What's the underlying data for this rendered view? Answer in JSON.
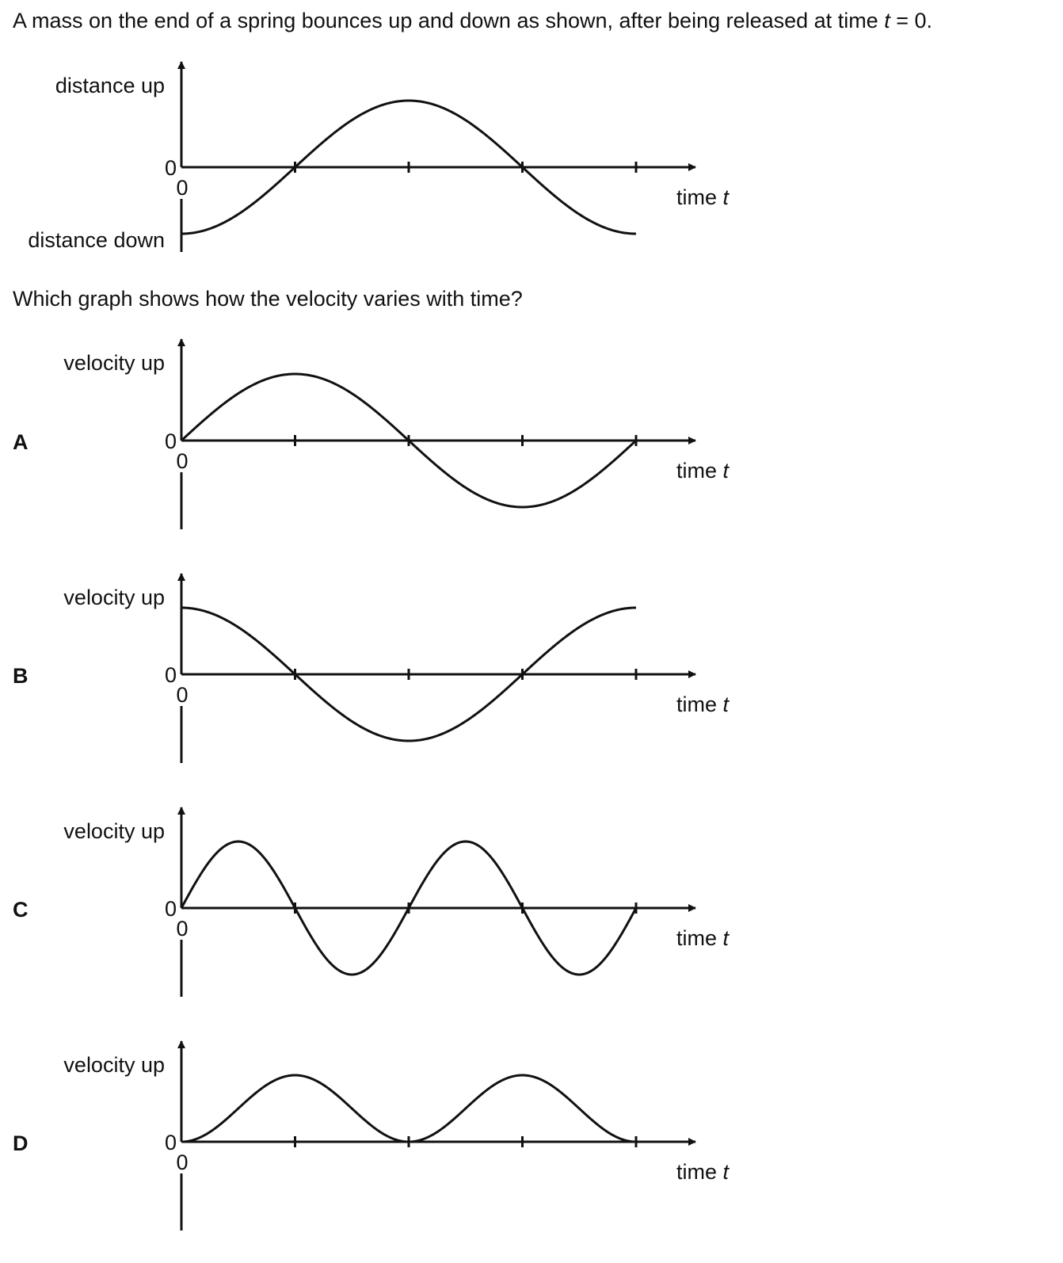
{
  "question": {
    "text_before": "A mass on the end of a spring bounces up and down as shown, after being released at time ",
    "t_symbol": "t",
    "text_after": " = 0.",
    "prompt": "Which graph shows how the velocity varies with time?"
  },
  "chart_data": [
    {
      "id": "distance",
      "type": "line",
      "option": "",
      "y_label_up": "distance up",
      "y_label_down": "distance down",
      "y_zero_label": "0",
      "x_zero_label": "0",
      "x_label": "time",
      "x_label_symbol": "t",
      "x_ticks": [
        1,
        2,
        3,
        4
      ],
      "xlim": [
        0,
        4
      ],
      "ylim": [
        -1,
        1
      ],
      "curve": "-cos(pi*x/2)"
    },
    {
      "id": "A",
      "type": "line",
      "option": "A",
      "y_label_up": "velocity up",
      "y_label_down": "",
      "y_zero_label": "0",
      "x_zero_label": "0",
      "x_label": "time",
      "x_label_symbol": "t",
      "x_ticks": [
        1,
        2,
        3,
        4
      ],
      "xlim": [
        0,
        4
      ],
      "ylim": [
        -1,
        1
      ],
      "curve": "sin(pi*x/2)"
    },
    {
      "id": "B",
      "type": "line",
      "option": "B",
      "y_label_up": "velocity up",
      "y_label_down": "",
      "y_zero_label": "0",
      "x_zero_label": "0",
      "x_label": "time",
      "x_label_symbol": "t",
      "x_ticks": [
        1,
        2,
        3,
        4
      ],
      "xlim": [
        0,
        4
      ],
      "ylim": [
        -1,
        1
      ],
      "curve": "cos(pi*x/2)"
    },
    {
      "id": "C",
      "type": "line",
      "option": "C",
      "y_label_up": "velocity up",
      "y_label_down": "",
      "y_zero_label": "0",
      "x_zero_label": "0",
      "x_label": "time",
      "x_label_symbol": "t",
      "x_ticks": [
        1,
        2,
        3,
        4
      ],
      "xlim": [
        0,
        4
      ],
      "ylim": [
        -1,
        1
      ],
      "curve": "sin(pi*x)"
    },
    {
      "id": "D",
      "type": "line",
      "option": "D",
      "y_label_up": "velocity up",
      "y_label_down": "",
      "y_zero_label": "0",
      "x_zero_label": "0",
      "x_label": "time",
      "x_label_symbol": "t",
      "x_ticks": [
        1,
        2,
        3,
        4
      ],
      "xlim": [
        0,
        4
      ],
      "ylim": [
        -1,
        1
      ],
      "curve": "sin^2(pi*x/2)"
    }
  ]
}
